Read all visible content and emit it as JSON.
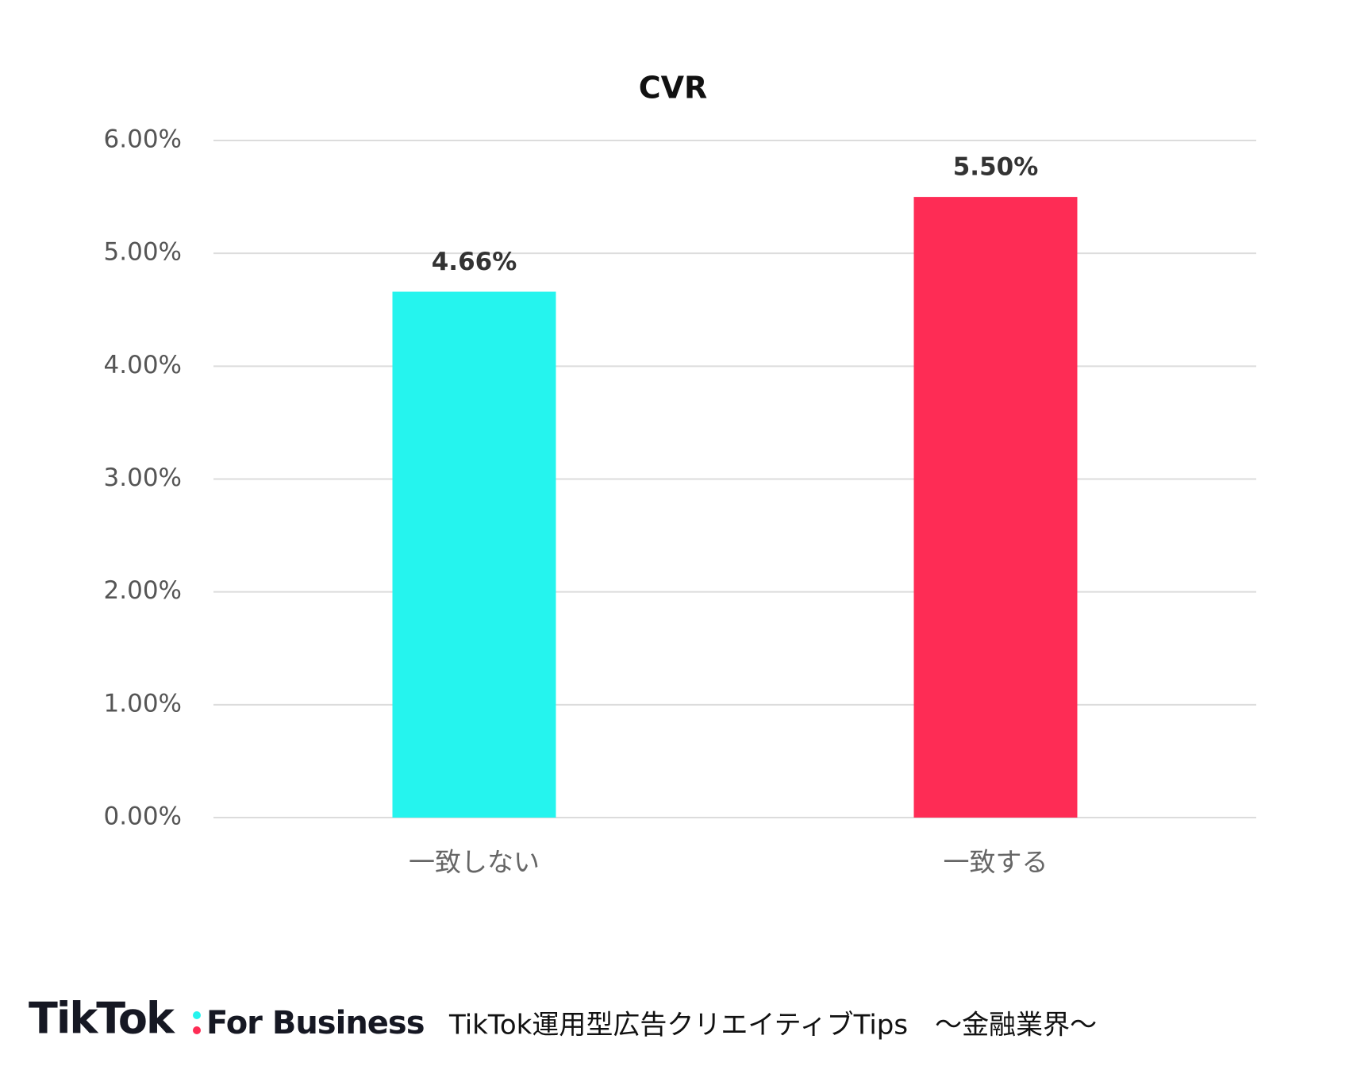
{
  "chart_data": {
    "type": "bar",
    "title": "CVR",
    "categories": [
      "一致しない",
      "一致する"
    ],
    "values": [
      4.66,
      5.5
    ],
    "value_labels": [
      "4.66%",
      "5.50%"
    ],
    "colors": [
      "#25f4ee",
      "#fe2c55"
    ],
    "ylim": [
      0,
      6
    ],
    "yticks": [
      {
        "value": 0,
        "label": "0.00%"
      },
      {
        "value": 1,
        "label": "1.00%"
      },
      {
        "value": 2,
        "label": "2.00%"
      },
      {
        "value": 3,
        "label": "3.00%"
      },
      {
        "value": 4,
        "label": "4.00%"
      },
      {
        "value": 5,
        "label": "5.00%"
      },
      {
        "value": 6,
        "label": "6.00%"
      }
    ],
    "grid": true
  },
  "footer": {
    "logo": "TikTok",
    "logo_sub": "For Business",
    "caption": "TikTok運用型広告クリエイティブTips　～金融業界～"
  }
}
